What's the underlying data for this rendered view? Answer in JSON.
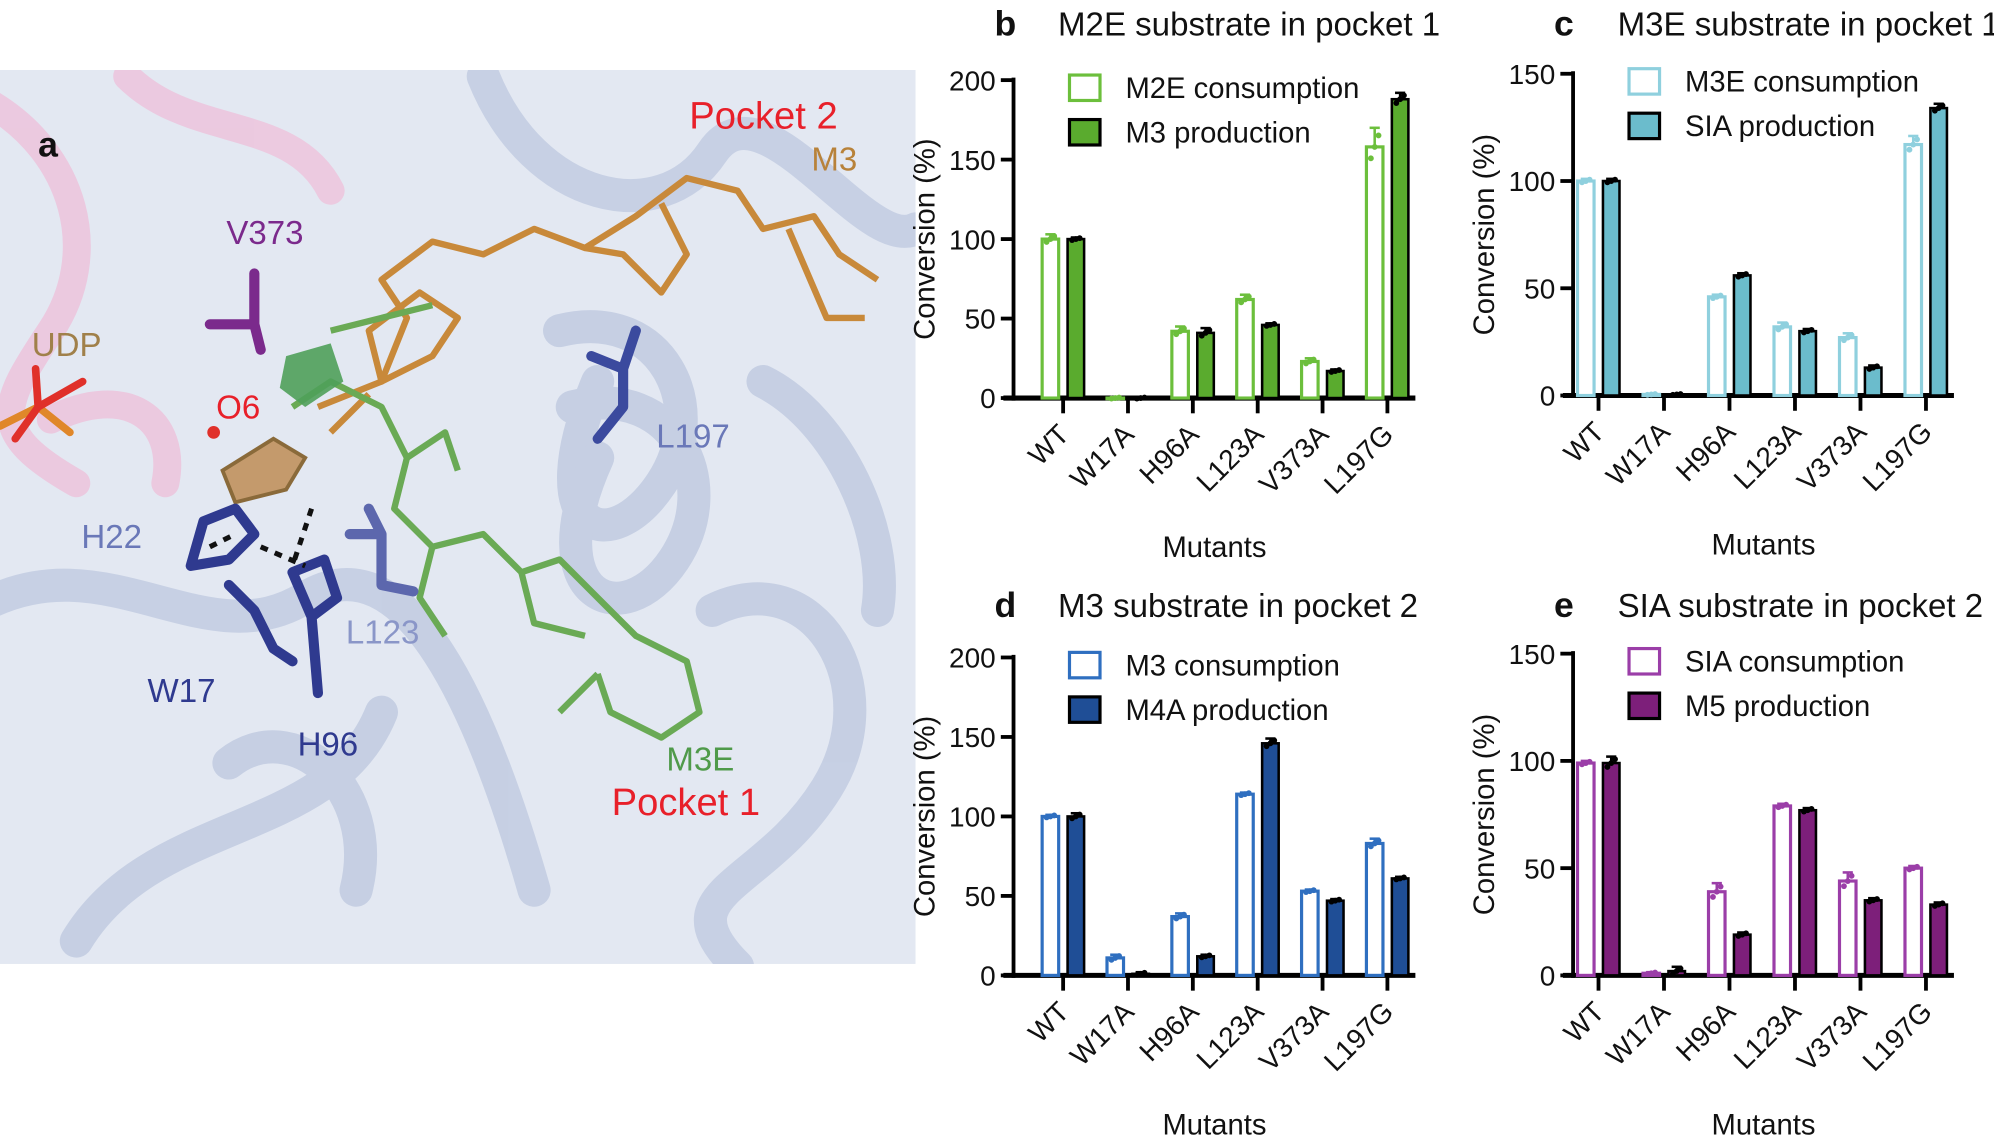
{
  "panel_a": {
    "letter": "a",
    "labels": {
      "pocket2": "Pocket 2",
      "m3": "M3",
      "v373": "V373",
      "udp": "UDP",
      "o6": "O6",
      "l197": "L197",
      "h22": "H22",
      "l123": "L123",
      "w17": "W17",
      "h96": "H96",
      "m3e": "M3E",
      "pocket1": "Pocket 1"
    },
    "colors": {
      "protein": "#c9d3e6",
      "pink_chain": "#e9c3dc",
      "m3": "#c8893a",
      "m3e": "#6aaa55",
      "residue_dark": "#2f3a8f",
      "residue_light": "#6a78b8",
      "pocket_label": "#e8202a",
      "v373": "#7b2a8c"
    }
  },
  "chart_data": [
    {
      "id": "b",
      "letter": "b",
      "type": "bar",
      "title": "M2E substrate in pocket 1",
      "xlabel": "Mutants",
      "ylabel": "Conversion (%)",
      "ylim": [
        0,
        200
      ],
      "yticks": [
        0,
        50,
        100,
        150,
        200
      ],
      "categories": [
        "WT",
        "W17A",
        "H96A",
        "L123A",
        "V373A",
        "L197G"
      ],
      "legend_position": "top-left",
      "series": [
        {
          "name": "M2E consumption",
          "style": "open",
          "color": "#6cbf3c",
          "values": [
            100,
            0,
            42,
            62,
            23,
            158
          ],
          "errors": [
            3,
            0.5,
            3,
            3,
            2,
            12
          ]
        },
        {
          "name": "M3 production",
          "style": "filled",
          "color": "#5aab2e",
          "values": [
            100,
            0,
            41,
            46,
            17,
            188
          ],
          "errors": [
            1,
            0.5,
            3,
            1,
            1,
            4
          ]
        }
      ]
    },
    {
      "id": "c",
      "letter": "c",
      "type": "bar",
      "title": "M3E substrate in pocket 1",
      "xlabel": "Mutants",
      "ylabel": "Conversion (%)",
      "ylim": [
        0,
        150
      ],
      "yticks": [
        0,
        50,
        100,
        150
      ],
      "categories": [
        "WT",
        "W17A",
        "H96A",
        "L123A",
        "V373A",
        "L197G"
      ],
      "legend_position": "top-left",
      "series": [
        {
          "name": "M3E consumption",
          "style": "open",
          "color": "#8fd0de",
          "values": [
            100,
            0.5,
            46,
            32,
            27,
            117
          ],
          "errors": [
            1,
            0.3,
            1,
            2,
            2,
            4
          ]
        },
        {
          "name": "SIA production",
          "style": "filled",
          "color": "#6bbccc",
          "values": [
            100,
            0.5,
            56,
            30,
            13,
            134
          ],
          "errors": [
            1,
            0.3,
            1,
            1,
            1,
            2
          ]
        }
      ]
    },
    {
      "id": "d",
      "letter": "d",
      "type": "bar",
      "title": "M3 substrate in pocket 2",
      "xlabel": "Mutants",
      "ylabel": "Conversion (%)",
      "ylim": [
        0,
        200
      ],
      "yticks": [
        0,
        50,
        100,
        150,
        200
      ],
      "categories": [
        "WT",
        "W17A",
        "H96A",
        "L123A",
        "V373A",
        "L197G"
      ],
      "legend_position": "top-left",
      "series": [
        {
          "name": "M3 consumption",
          "style": "open",
          "color": "#2f6fc0",
          "values": [
            100,
            11,
            37,
            114,
            53,
            83
          ],
          "errors": [
            1,
            2,
            2,
            1,
            1,
            3
          ]
        },
        {
          "name": "M4A production",
          "style": "filled",
          "color": "#1f4e96",
          "values": [
            100,
            1,
            12,
            146,
            47,
            61
          ],
          "errors": [
            2,
            1,
            1,
            3,
            1,
            1
          ]
        }
      ]
    },
    {
      "id": "e",
      "letter": "e",
      "type": "bar",
      "title": "SIA substrate in pocket 2",
      "xlabel": "Mutants",
      "ylabel": "Conversion (%)",
      "ylim": [
        0,
        150
      ],
      "yticks": [
        0,
        50,
        100,
        150
      ],
      "categories": [
        "WT",
        "W17A",
        "H96A",
        "L123A",
        "V373A",
        "L197G"
      ],
      "legend_position": "top-left",
      "series": [
        {
          "name": "SIA consumption",
          "style": "open",
          "color": "#9b3ea8",
          "values": [
            99,
            1,
            39,
            79,
            44,
            50
          ],
          "errors": [
            1,
            0.5,
            4,
            1,
            4,
            1
          ]
        },
        {
          "name": "M5 production",
          "style": "filled",
          "color": "#7d1f7a",
          "values": [
            99,
            2,
            19,
            77,
            35,
            33
          ],
          "errors": [
            3,
            2,
            1,
            1,
            1,
            1
          ]
        }
      ]
    }
  ]
}
